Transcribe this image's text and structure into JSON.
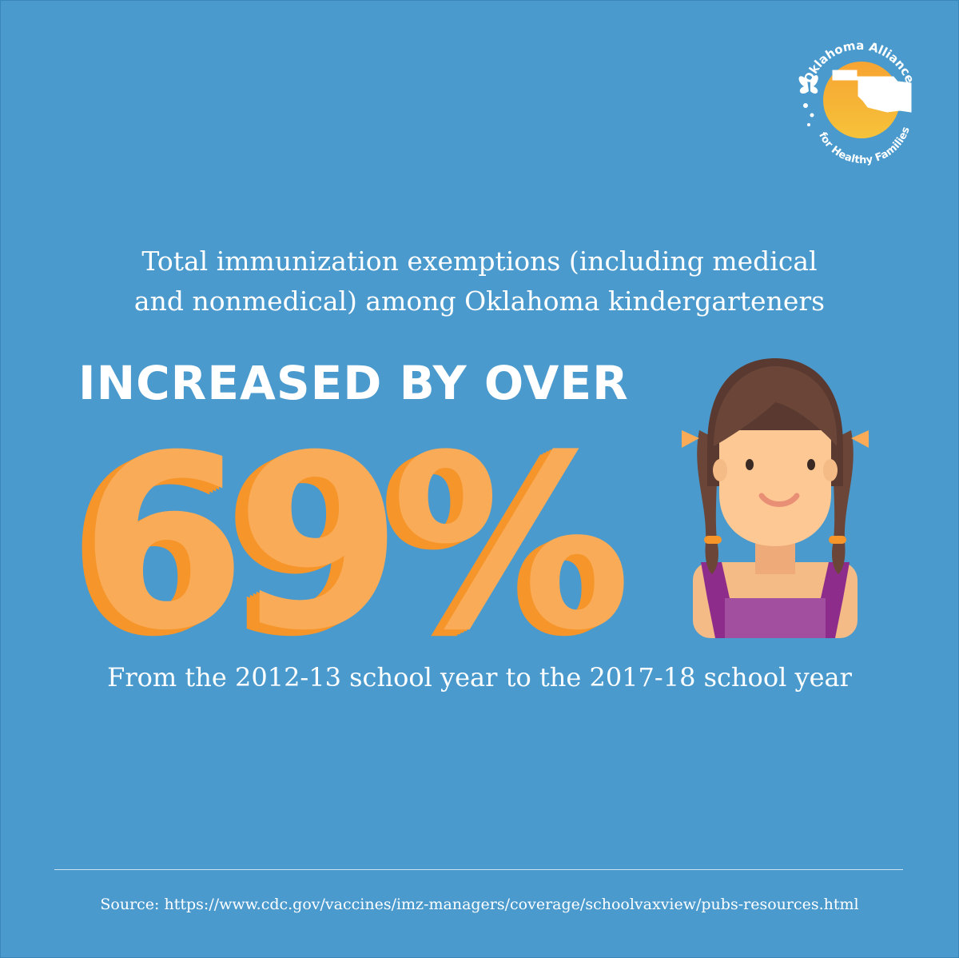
{
  "logo": {
    "text_top": "Oklahoma Alliance",
    "text_bottom": "for Healthy Families"
  },
  "headline": {
    "line1": "Total immunization exemptions (including medical",
    "line2": "and nonmedical) among Oklahoma kindergarteners"
  },
  "subhead": "INCREASED BY OVER",
  "stat": "69%",
  "period": "From the 2012-13 school year to the 2017-18 school year",
  "source": "Source: https://www.cdc.gov/vaccines/imz-managers/coverage/schoolvaxview/pubs-resources.html",
  "colors": {
    "background": "#4a9acd",
    "stat_fill": "#f9ab57",
    "stat_shadow": "#f6952a",
    "text": "#ffffff"
  },
  "icons": [
    "butterfly-icon",
    "oklahoma-state-icon",
    "girl-illustration"
  ]
}
